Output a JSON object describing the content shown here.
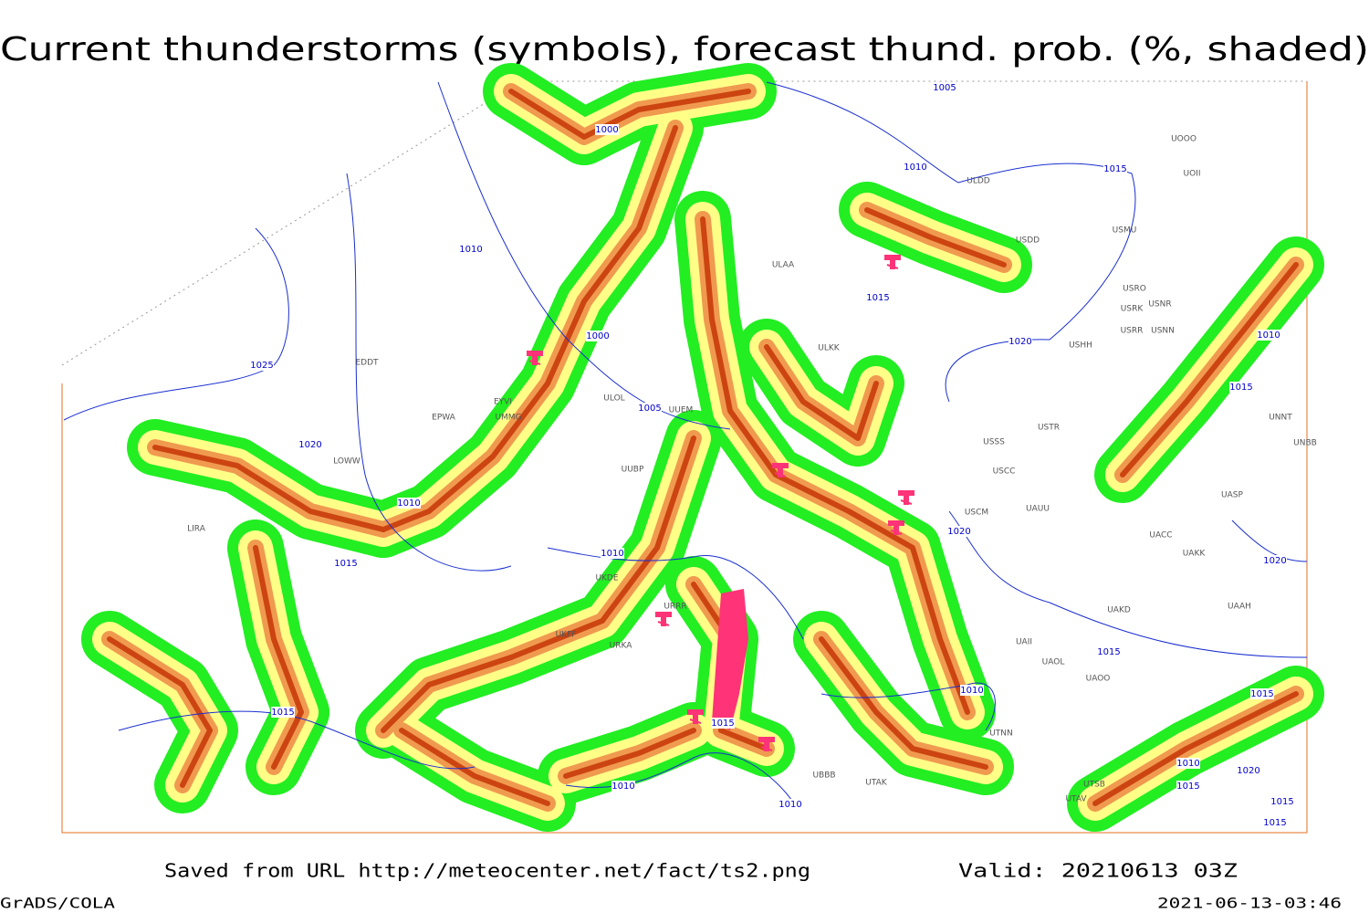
{
  "title": "Current thunderstorms (symbols), forecast thund. prob. (%, shaded)",
  "footer": {
    "source": "Saved from URL http://meteocenter.net/fact/ts2.png",
    "valid": "Valid: 20210613 03Z",
    "software": "GrADS/COLA",
    "timestamp": "2021-06-13-03:46"
  },
  "isobar_labels": [
    "1005",
    "1000",
    "1010",
    "1015",
    "1010",
    "1015",
    "1000",
    "1020",
    "1010",
    "1025",
    "1005",
    "1015",
    "1020",
    "1010",
    "1020",
    "1015",
    "1010",
    "1020",
    "1015",
    "1010",
    "1015",
    "1015",
    "1015",
    "1010",
    "1010",
    "1010",
    "1020",
    "1015",
    "1015",
    "1015"
  ],
  "station_labels": [
    "UOOO",
    "UOII",
    "ULDD",
    "USDD",
    "USMU",
    "ULAA",
    "USRO",
    "USRK",
    "USNR",
    "USRR",
    "USNN",
    "ULKK",
    "USHH",
    "EDDT",
    "UUEM",
    "ULOL",
    "EPWA",
    "UMMG",
    "EYVI",
    "USTR",
    "USSS",
    "UUBP",
    "USCC",
    "LOWW",
    "UNNT",
    "UNBB",
    "USCM",
    "UAUU",
    "LIRA",
    "UAKK",
    "UACC",
    "UASP",
    "UKDE",
    "URRR",
    "UAKD",
    "UAAH",
    "UKFF",
    "URKA",
    "UAII",
    "UAOL",
    "UAOO",
    "UTNN",
    "UBBB",
    "UTAK",
    "UTSB",
    "UTAV"
  ]
}
